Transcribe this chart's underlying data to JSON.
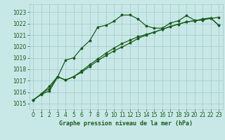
{
  "title": "Graphe pression niveau de la mer (hPa)",
  "bg_color": "#c8e8e8",
  "grid_color": "#a0c8c8",
  "line_color": "#1a5c1a",
  "ylim": [
    1014.5,
    1023.7
  ],
  "xlim": [
    -0.5,
    23.5
  ],
  "yticks": [
    1015,
    1016,
    1017,
    1018,
    1019,
    1020,
    1021,
    1022,
    1023
  ],
  "xticks": [
    0,
    1,
    2,
    3,
    4,
    5,
    6,
    7,
    8,
    9,
    10,
    11,
    12,
    13,
    14,
    15,
    16,
    17,
    18,
    19,
    20,
    21,
    22,
    23
  ],
  "line1_y": [
    1015.3,
    1015.8,
    1016.1,
    1017.3,
    1018.8,
    1019.0,
    1019.85,
    1020.5,
    1021.7,
    1021.85,
    1022.2,
    1022.75,
    1022.75,
    1022.4,
    1021.8,
    1021.6,
    1021.6,
    1022.05,
    1022.25,
    1022.7,
    1022.3,
    1022.3,
    1022.5,
    1021.85
  ],
  "line2_y": [
    1015.3,
    1015.85,
    1016.5,
    1017.35,
    1017.05,
    1017.35,
    1017.75,
    1018.25,
    1018.75,
    1019.2,
    1019.6,
    1019.95,
    1020.3,
    1020.7,
    1021.0,
    1021.25,
    1021.5,
    1021.75,
    1021.95,
    1022.15,
    1022.25,
    1022.35,
    1022.45,
    1022.55
  ],
  "line3_y": [
    1015.3,
    1015.85,
    1016.3,
    1017.35,
    1017.05,
    1017.35,
    1017.85,
    1018.4,
    1018.9,
    1019.4,
    1019.85,
    1020.25,
    1020.55,
    1020.85,
    1021.05,
    1021.25,
    1021.5,
    1021.75,
    1021.95,
    1022.15,
    1022.25,
    1022.4,
    1022.5,
    1021.85
  ],
  "tick_fontsize": 5.5,
  "label_fontsize": 6.0,
  "linewidth": 0.9,
  "markersize": 2.5
}
